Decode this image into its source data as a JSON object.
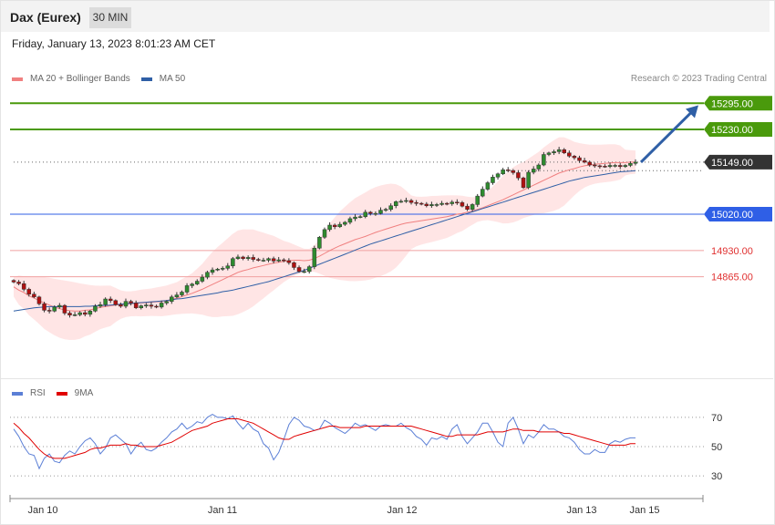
{
  "header": {
    "title": "Dax (Eurex)",
    "interval": "30 MIN"
  },
  "timestamp": "Friday, January 13, 2023 8:01:23 AM CET",
  "legend": [
    {
      "label": "MA 20 + Bollinger Bands",
      "color": "#f08080"
    },
    {
      "label": "MA 50",
      "color": "#2f5fa6"
    }
  ],
  "copyright": "Research © 2023 Trading Central",
  "rsi_legend": [
    {
      "label": "RSI",
      "color": "#5b7fd6"
    },
    {
      "label": "9MA",
      "color": "#e00000"
    }
  ],
  "chart_data": [
    {
      "type": "candlestick",
      "ylim": [
        14670,
        15325
      ],
      "x_ticks": [
        "Jan 10",
        "Jan 11",
        "Jan 12",
        "Jan 13",
        "Jan 15"
      ],
      "levels": [
        {
          "value": 15295.0,
          "label": "15295.00",
          "kind": "resistance",
          "color": "#4a9a0c"
        },
        {
          "value": 15230.0,
          "label": "15230.00",
          "kind": "resistance",
          "color": "#4a9a0c"
        },
        {
          "value": 15149.0,
          "label": "15149.00",
          "kind": "last-price",
          "color": "#333333"
        },
        {
          "value": 15020.0,
          "label": "15020.00",
          "kind": "pivot",
          "color": "#2f5fe6"
        },
        {
          "value": 14930.0,
          "label": "14930.00",
          "kind": "support",
          "color": "#e03030"
        },
        {
          "value": 14865.0,
          "label": "14865.00",
          "kind": "support",
          "color": "#e03030"
        }
      ],
      "projection": {
        "from": 15149,
        "to": 15290
      },
      "close": [
        14852,
        14848,
        14834,
        14822,
        14815,
        14798,
        14782,
        14780,
        14790,
        14794,
        14775,
        14770,
        14771,
        14776,
        14772,
        14780,
        14792,
        14796,
        14810,
        14806,
        14796,
        14792,
        14804,
        14800,
        14788,
        14793,
        14795,
        14792,
        14790,
        14800,
        14804,
        14815,
        14820,
        14827,
        14843,
        14847,
        14854,
        14864,
        14876,
        14882,
        14884,
        14886,
        14892,
        14910,
        14914,
        14910,
        14913,
        14908,
        14906,
        14906,
        14910,
        14904,
        14907,
        14905,
        14900,
        14888,
        14878,
        14878,
        14890,
        14936,
        14963,
        14982,
        14993,
        14989,
        14995,
        15000,
        15009,
        15013,
        15014,
        15025,
        15022,
        15022,
        15030,
        15032,
        15041,
        15051,
        15052,
        15054,
        15049,
        15047,
        15045,
        15041,
        15044,
        15044,
        15047,
        15046,
        15050,
        15049,
        15040,
        15032,
        15044,
        15065,
        15082,
        15098,
        15112,
        15120,
        15130,
        15128,
        15123,
        15110,
        15086,
        15124,
        15132,
        15142,
        15168,
        15172,
        15175,
        15180,
        15172,
        15164,
        15160,
        15153,
        15149,
        15142,
        15140,
        15139,
        15138,
        15141,
        15141,
        15138,
        15141,
        15146,
        15149
      ],
      "ma20": [
        14840,
        14832,
        14826,
        14818,
        14812,
        14806,
        14800,
        14795,
        14790,
        14786,
        14783,
        14781,
        14780,
        14780,
        14782,
        14783,
        14786,
        14789,
        14791,
        14793,
        14795,
        14796,
        14797,
        14798,
        14799,
        14800,
        14801,
        14802,
        14803,
        14804,
        14806,
        14809,
        14812,
        14816,
        14820,
        14824,
        14829,
        14834,
        14840,
        14846,
        14852,
        14858,
        14864,
        14870,
        14876,
        14880,
        14883,
        14887,
        14890,
        14893,
        14896,
        14899,
        14901,
        14903,
        14905,
        14906,
        14906,
        14905,
        14906,
        14910,
        14916,
        14923,
        14930,
        14936,
        14942,
        14947,
        14952,
        14957,
        14961,
        14965,
        14970,
        14975,
        14979,
        14983,
        14987,
        14991,
        14995,
        14998,
        15000,
        15002,
        15004,
        15006,
        15008,
        15010,
        15012,
        15014,
        15017,
        15020,
        15022,
        15025,
        15028,
        15032,
        15036,
        15041,
        15046,
        15051,
        15056,
        15062,
        15068,
        15074,
        15080,
        15086,
        15092,
        15098,
        15104,
        15110,
        15116,
        15122,
        15126,
        15130,
        15133,
        15137,
        15140,
        15142,
        15144,
        15145,
        15146,
        15147,
        15148,
        15148,
        15148,
        15149,
        15149
      ],
      "ma50": [
        14780,
        14782,
        14784,
        14786,
        14788,
        14789,
        14790,
        14791,
        14791,
        14791,
        14791,
        14791,
        14791,
        14791,
        14792,
        14792,
        14793,
        14794,
        14794,
        14795,
        14796,
        14797,
        14798,
        14799,
        14800,
        14801,
        14802,
        14803,
        14804,
        14805,
        14806,
        14808,
        14810,
        14811,
        14813,
        14815,
        14817,
        14819,
        14821,
        14823,
        14825,
        14828,
        14830,
        14832,
        14835,
        14838,
        14841,
        14844,
        14847,
        14850,
        14853,
        14857,
        14861,
        14865,
        14869,
        14873,
        14877,
        14881,
        14886,
        14891,
        14896,
        14901,
        14906,
        14911,
        14916,
        14921,
        14926,
        14931,
        14936,
        14941,
        14946,
        14950,
        14954,
        14958,
        14962,
        14966,
        14970,
        14974,
        14978,
        14982,
        14986,
        14990,
        14994,
        14998,
        15002,
        15006,
        15010,
        15014,
        15018,
        15022,
        15026,
        15030,
        15034,
        15038,
        15042,
        15046,
        15050,
        15054,
        15058,
        15062,
        15066,
        15070,
        15074,
        15078,
        15082,
        15086,
        15090,
        15094,
        15098,
        15102,
        15105,
        15108,
        15111,
        15113,
        15115,
        15117,
        15119,
        15121,
        15123,
        15125,
        15126,
        15127,
        15128
      ]
    },
    {
      "type": "line",
      "title": "RSI",
      "ylim": [
        22,
        78
      ],
      "y_ticks": [
        70,
        50,
        30
      ],
      "series": [
        {
          "name": "RSI",
          "values": [
            62,
            57,
            50,
            45,
            44,
            35,
            42,
            45,
            40,
            39,
            44,
            47,
            45,
            50,
            54,
            56,
            52,
            45,
            49,
            56,
            58,
            55,
            52,
            45,
            50,
            53,
            48,
            47,
            49,
            53,
            56,
            60,
            62,
            66,
            62,
            64,
            67,
            66,
            70,
            72,
            70,
            70,
            69,
            71,
            66,
            62,
            66,
            62,
            60,
            52,
            49,
            41,
            46,
            55,
            65,
            70,
            68,
            64,
            63,
            61,
            62,
            68,
            66,
            63,
            61,
            59,
            62,
            66,
            64,
            65,
            63,
            61,
            64,
            65,
            64,
            64,
            66,
            63,
            61,
            57,
            55,
            51,
            56,
            55,
            57,
            55,
            62,
            65,
            57,
            52,
            56,
            60,
            66,
            66,
            60,
            53,
            50,
            66,
            70,
            62,
            52,
            58,
            56,
            60,
            65,
            62,
            62,
            60,
            57,
            56,
            53,
            48,
            45,
            45,
            48,
            46,
            46,
            52,
            54,
            53,
            55,
            56,
            56
          ]
        },
        {
          "name": "9MA",
          "values": [
            66,
            63,
            59,
            56,
            52,
            48,
            45,
            43,
            42,
            42,
            42,
            43,
            44,
            45,
            46,
            48,
            49,
            49,
            50,
            51,
            51,
            51,
            52,
            51,
            51,
            50,
            50,
            50,
            50,
            51,
            52,
            53,
            55,
            57,
            59,
            61,
            62,
            63,
            64,
            66,
            67,
            68,
            69,
            69,
            69,
            68,
            67,
            66,
            64,
            62,
            60,
            58,
            56,
            55,
            55,
            57,
            58,
            59,
            60,
            61,
            62,
            63,
            64,
            64,
            63,
            63,
            63,
            63,
            63,
            64,
            64,
            64,
            64,
            64,
            64,
            64,
            64,
            64,
            64,
            63,
            62,
            61,
            60,
            59,
            58,
            57,
            57,
            58,
            58,
            58,
            58,
            58,
            59,
            60,
            60,
            60,
            60,
            61,
            62,
            62,
            61,
            61,
            61,
            60,
            60,
            60,
            60,
            60,
            59,
            59,
            58,
            57,
            56,
            55,
            54,
            53,
            52,
            51,
            51,
            51,
            51,
            52,
            52
          ]
        }
      ]
    }
  ]
}
